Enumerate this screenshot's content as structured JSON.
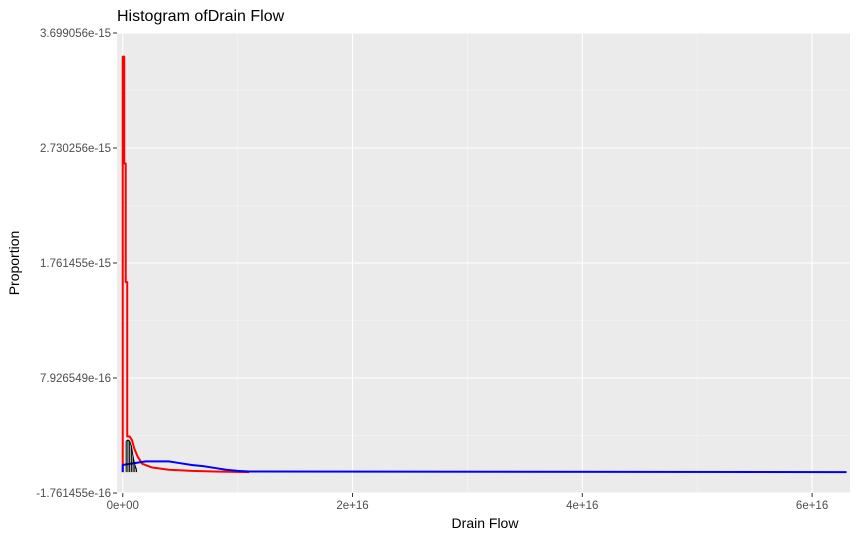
{
  "chart_data": {
    "type": "histogram",
    "title": "Histogram ofDrain Flow",
    "xlabel": "Drain Flow",
    "ylabel": "Proportion",
    "xlim": [
      -500000000000000.0,
      6.33e+16
    ],
    "ylim": [
      -1.761455e-16,
      3.699056e-15
    ],
    "x_ticks": [
      {
        "value": 0,
        "label": "0e+00"
      },
      {
        "value": 2e+16,
        "label": "2e+16"
      },
      {
        "value": 4e+16,
        "label": "4e+16"
      },
      {
        "value": 6e+16,
        "label": "6e+16"
      }
    ],
    "y_ticks": [
      {
        "value": -1.761455e-16,
        "label": "-1.761455e-16"
      },
      {
        "value": 7.926549e-16,
        "label": "7.926549e-16"
      },
      {
        "value": 1.761455e-15,
        "label": "1.761455e-15"
      },
      {
        "value": 2.730256e-15,
        "label": "2.730256e-15"
      },
      {
        "value": 3.699056e-15,
        "label": "3.699056e-15"
      }
    ],
    "grid": true,
    "panel_background": "#ebebeb",
    "series": [
      {
        "color": "#ff0000",
        "style": "step",
        "points": [
          [
            0,
            0
          ],
          [
            0,
            3.5e-15
          ],
          [
            130000000000000.0,
            3.5e-15
          ],
          [
            130000000000000.0,
            2.6e-15
          ],
          [
            260000000000000.0,
            2.6e-15
          ],
          [
            260000000000000.0,
            1.6e-15
          ],
          [
            390000000000000.0,
            1.6e-15
          ],
          [
            390000000000000.0,
            3e-16
          ],
          [
            600000000000000.0,
            3e-16
          ],
          [
            800000000000000.0,
            2.7e-16
          ],
          [
            1000000000000000.0,
            2e-16
          ],
          [
            1300000000000000.0,
            1.3e-16
          ],
          [
            1700000000000000.0,
            7e-17
          ],
          [
            2500000000000000.0,
            4e-17
          ],
          [
            4000000000000000.0,
            2e-17
          ],
          [
            6000000000000000.0,
            1e-17
          ],
          [
            8000000000000000.0,
            5e-18
          ],
          [
            1.1e+16,
            0
          ]
        ]
      },
      {
        "color": "#0000ff",
        "style": "step",
        "points": [
          [
            0,
            0
          ],
          [
            0,
            6e-17
          ],
          [
            2000000000000000.0,
            9e-17
          ],
          [
            4000000000000000.0,
            9e-17
          ],
          [
            5000000000000000.0,
            7.5e-17
          ],
          [
            6000000000000000.0,
            6e-17
          ],
          [
            7000000000000000.0,
            5e-17
          ],
          [
            8000000000000000.0,
            3.5e-17
          ],
          [
            9000000000000000.0,
            2e-17
          ],
          [
            1e+16,
            1e-17
          ],
          [
            1.1e+16,
            5e-18
          ],
          [
            6.3e+16,
            0
          ]
        ]
      },
      {
        "color": "#000000",
        "style": "bars",
        "bars": [
          [
            300000000000000.0,
            2.6e-16
          ],
          [
            450000000000000.0,
            2.7e-16
          ],
          [
            600000000000000.0,
            2.6e-16
          ],
          [
            750000000000000.0,
            2.2e-16
          ],
          [
            900000000000000.0,
            1.3e-16
          ],
          [
            1050000000000000.0,
            6e-17
          ],
          [
            1200000000000000.0,
            2e-17
          ]
        ]
      }
    ]
  }
}
